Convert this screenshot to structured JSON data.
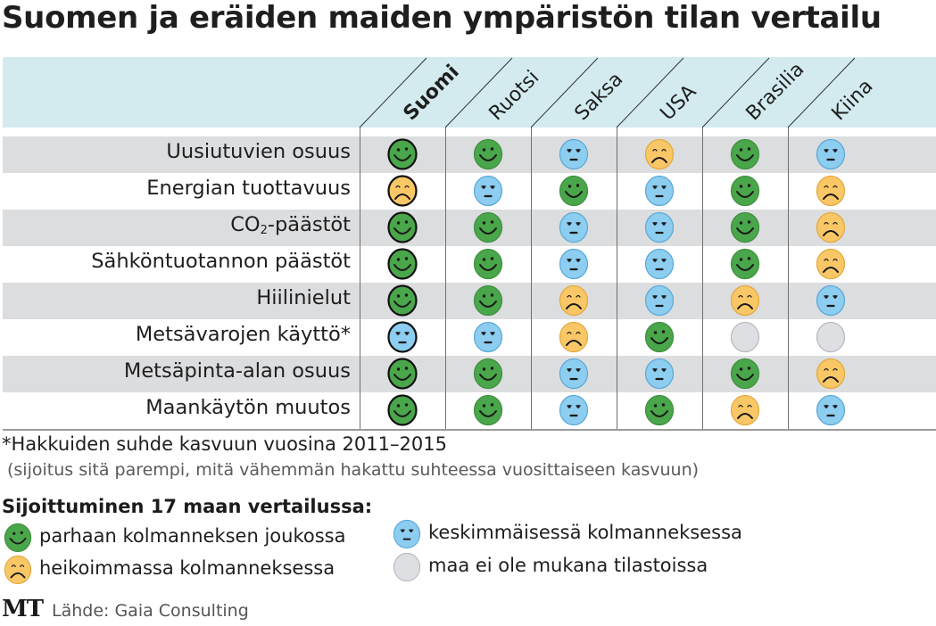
{
  "title": "Suomen ja eräiden maiden ympäristön tilan vertailu",
  "chart_data": {
    "type": "table",
    "title": "Suomen ja eräiden maiden ympäristön tilan vertailu",
    "columns": [
      "Suomi",
      "Ruotsi",
      "Saksa",
      "USA",
      "Brasilia",
      "Kiina"
    ],
    "highlight_column": "Suomi",
    "rows": [
      {
        "label": "Uusiutuvien osuus",
        "values": [
          "best",
          "best",
          "middle",
          "weakest",
          "best",
          "middle"
        ]
      },
      {
        "label": "Energian tuottavuus",
        "values": [
          "weakest",
          "middle",
          "best",
          "middle",
          "best",
          "weakest"
        ]
      },
      {
        "label": "CO₂-päästöt",
        "values": [
          "best",
          "best",
          "middle",
          "middle",
          "best",
          "weakest"
        ]
      },
      {
        "label": "Sähköntuotannon päästöt",
        "values": [
          "best",
          "best",
          "middle",
          "middle",
          "best",
          "weakest"
        ]
      },
      {
        "label": "Hiilinielut",
        "values": [
          "best",
          "best",
          "weakest",
          "middle",
          "weakest",
          "middle"
        ]
      },
      {
        "label": "Metsävarojen käyttö*",
        "values": [
          "middle",
          "middle",
          "weakest",
          "best",
          "none",
          "none"
        ]
      },
      {
        "label": "Metsäpinta-alan osuus",
        "values": [
          "best",
          "best",
          "middle",
          "middle",
          "best",
          "weakest"
        ]
      },
      {
        "label": "Maankäytön muutos",
        "values": [
          "best",
          "best",
          "middle",
          "best",
          "weakest",
          "middle"
        ]
      }
    ],
    "legend": {
      "title": "Sijoittuminen 17 maan vertailussa:",
      "items": [
        {
          "key": "best",
          "label": "parhaan kolmanneksen joukossa",
          "icon": "smiley-happy-icon",
          "color": "#4aa64a"
        },
        {
          "key": "middle",
          "label": "keskimmäisessä kolmanneksessa",
          "icon": "smiley-neutral-icon",
          "color": "#8ccdf0"
        },
        {
          "key": "weakest",
          "label": "heikoimmassa kolmanneksessa",
          "icon": "smiley-sad-icon",
          "color": "#f9c766"
        },
        {
          "key": "none",
          "label": "maa ei ole mukana tilastoissa",
          "icon": "empty-circle-icon",
          "color": "#dedfe3"
        }
      ]
    }
  },
  "footnotes": {
    "line1": "*Hakkuiden suhde kasvuun vuosina 2011–2015",
    "line2": "(sijoitus sitä parempi, mitä vähemmän hakattu suhteessa vuosittaiseen kasvuun)"
  },
  "logo": "MT",
  "source": "Lähde: Gaia Consulting",
  "colors": {
    "header_band": "#d3ebef",
    "shaded_row": "#dcdddf"
  }
}
